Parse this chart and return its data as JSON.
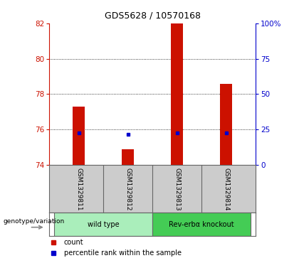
{
  "title": "GDS5628 / 10570168",
  "samples": [
    "GSM1329811",
    "GSM1329812",
    "GSM1329813",
    "GSM1329814"
  ],
  "bar_bottoms": [
    74,
    74,
    74,
    74
  ],
  "bar_tops": [
    77.3,
    74.9,
    82.0,
    78.6
  ],
  "blue_y": [
    75.82,
    75.72,
    75.82,
    75.82
  ],
  "ylim": [
    74,
    82
  ],
  "yticks_left": [
    74,
    76,
    78,
    80,
    82
  ],
  "yticks_right": [
    0,
    25,
    50,
    75,
    100
  ],
  "bar_color": "#cc1100",
  "blue_color": "#0000cc",
  "grid_color": "#000000",
  "background_color": "#ffffff",
  "plot_bg": "#ffffff",
  "sample_bg": "#cccccc",
  "genotype_groups": [
    {
      "label": "wild type",
      "samples": [
        0,
        1
      ],
      "color": "#aaeebb"
    },
    {
      "label": "Rev-erbα knockout",
      "samples": [
        2,
        3
      ],
      "color": "#44cc55"
    }
  ],
  "genotype_label": "genotype/variation",
  "legend_items": [
    {
      "color": "#cc1100",
      "label": "count"
    },
    {
      "color": "#0000cc",
      "label": "percentile rank within the sample"
    }
  ],
  "bar_width": 0.25
}
